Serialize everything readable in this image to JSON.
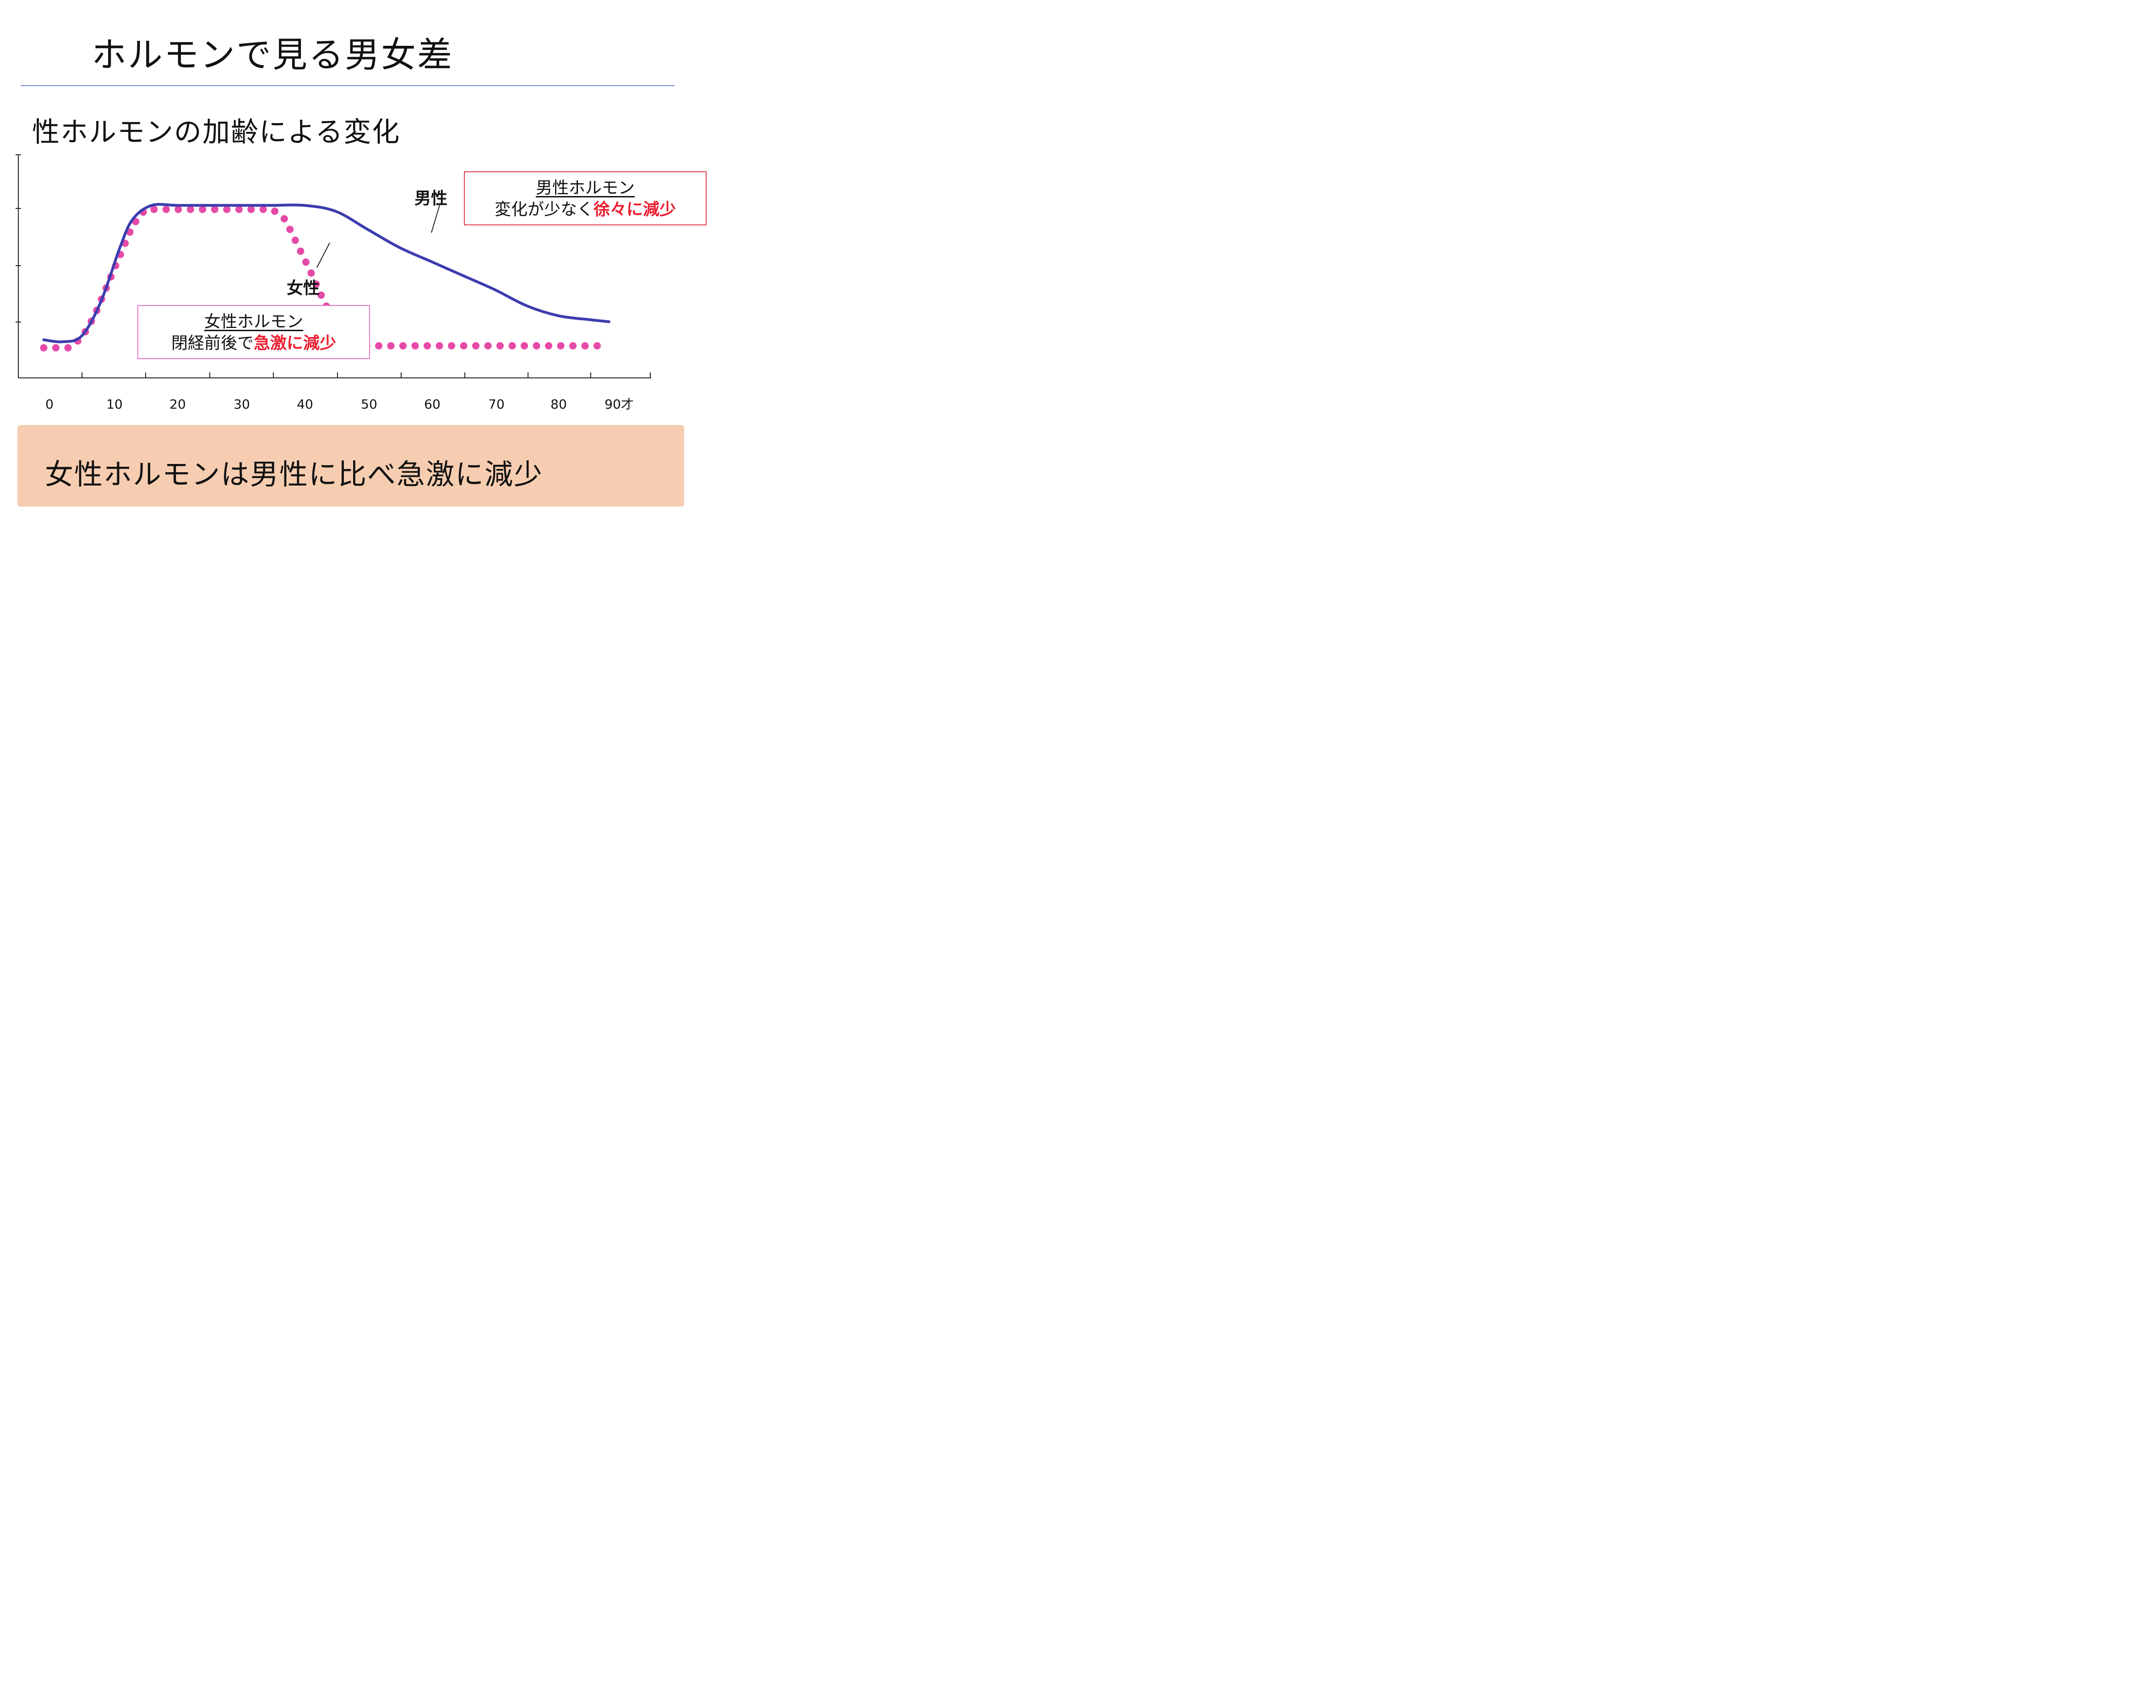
{
  "title": "ホルモンで見る男女差",
  "subtitle": "性ホルモンの加齢による変化",
  "chart_data": {
    "type": "line",
    "x_tick_labels": [
      "0",
      "10",
      "20",
      "30",
      "40",
      "50",
      "60",
      "70",
      "80",
      "90才"
    ],
    "xlim": [
      0,
      100
    ],
    "series": [
      {
        "name": "男性",
        "style": "solid",
        "color": "#3c3caf",
        "x": [
          4,
          7,
          10,
          13,
          16,
          18,
          21,
          25,
          30,
          35,
          40,
          45,
          50,
          55,
          60,
          65,
          70,
          75,
          80,
          85,
          90,
          93
        ],
        "values": [
          0.11,
          0.1,
          0.13,
          0.3,
          0.57,
          0.71,
          0.78,
          0.78,
          0.78,
          0.78,
          0.78,
          0.78,
          0.75,
          0.66,
          0.57,
          0.5,
          0.43,
          0.36,
          0.28,
          0.23,
          0.21,
          0.2
        ]
      },
      {
        "name": "女性",
        "style": "dotted",
        "color": "#e64aa8",
        "x": [
          4,
          6,
          8,
          10,
          12,
          14,
          16,
          18,
          20,
          22,
          25,
          30,
          35,
          40,
          42,
          44,
          46,
          48,
          50,
          52,
          55,
          60,
          65,
          70,
          75,
          80,
          85,
          90,
          93
        ],
        "values": [
          0.07,
          0.07,
          0.07,
          0.12,
          0.23,
          0.38,
          0.53,
          0.68,
          0.76,
          0.76,
          0.76,
          0.76,
          0.76,
          0.76,
          0.71,
          0.58,
          0.45,
          0.31,
          0.18,
          0.1,
          0.08,
          0.08,
          0.08,
          0.08,
          0.08,
          0.08,
          0.08,
          0.08,
          0.08
        ]
      }
    ],
    "ylim": [
      0,
      1
    ],
    "xlabel": "",
    "ylabel": "",
    "grid": false
  },
  "labels": {
    "male": "男性",
    "female": "女性"
  },
  "callouts": {
    "male": {
      "heading": "男性ホルモン",
      "line2_prefix": "変化が少なく",
      "line2_highlight": "徐々に減少"
    },
    "female": {
      "heading": "女性ホルモン",
      "line2_prefix": "閉経前後で",
      "line2_highlight": "急激に減少"
    }
  },
  "conclusion": "女性ホルモンは男性に比べ急激に減少"
}
